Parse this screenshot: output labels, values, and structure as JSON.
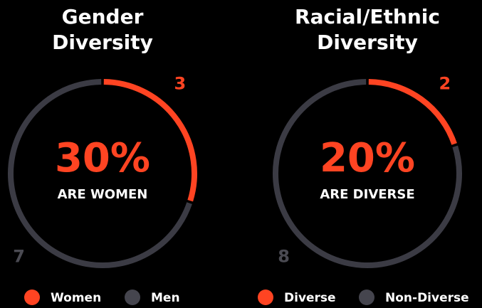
{
  "chart_data": [
    {
      "type": "donut",
      "title": "Gender Diversity",
      "categories": [
        "Women",
        "Men"
      ],
      "values": [
        3,
        7
      ],
      "colors": [
        "#ff4422",
        "#3b3b44"
      ],
      "center_text": "30%",
      "center_caption": "ARE WOMEN",
      "legend": "bottom"
    },
    {
      "type": "donut",
      "title": "Racial/Ethnic Diversity",
      "categories": [
        "Diverse",
        "Non-Diverse"
      ],
      "values": [
        2,
        8
      ],
      "colors": [
        "#ff4422",
        "#3b3b44"
      ],
      "center_text": "20%",
      "center_caption": "ARE DIVERSE",
      "legend": "bottom"
    }
  ]
}
